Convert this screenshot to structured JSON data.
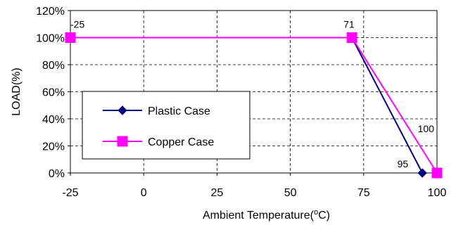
{
  "chart_data": {
    "type": "line",
    "xlabel_prefix": "Ambient Temperature(",
    "xlabel_sup": "o",
    "xlabel_suffix": "C)",
    "ylabel": "LOAD(%)",
    "xlim": [
      -25,
      100
    ],
    "ylim": [
      0,
      120
    ],
    "xticks": [
      -25,
      0,
      25,
      50,
      75,
      100
    ],
    "yticks": [
      0,
      20,
      40,
      60,
      80,
      100,
      120
    ],
    "ytick_labels": [
      "0%",
      "20%",
      "40%",
      "60%",
      "80%",
      "100%",
      "120%"
    ],
    "grid": "dashed",
    "legend": "center-left",
    "series": [
      {
        "name": "Plastic Case",
        "color": "#000080",
        "marker": "diamond",
        "x": [
          -25,
          71,
          95
        ],
        "y": [
          100,
          100,
          0
        ]
      },
      {
        "name": "Copper Case",
        "color": "#ff00ff",
        "marker": "square",
        "x": [
          -25,
          71,
          100
        ],
        "y": [
          100,
          100,
          0
        ]
      }
    ],
    "annotations": [
      {
        "text": "-25",
        "x": -25,
        "y": 100
      },
      {
        "text": "71",
        "x": 71,
        "y": 100
      },
      {
        "text": "95",
        "x": 95,
        "y": 0
      },
      {
        "text": "100",
        "x": 100,
        "y": 0
      }
    ]
  }
}
